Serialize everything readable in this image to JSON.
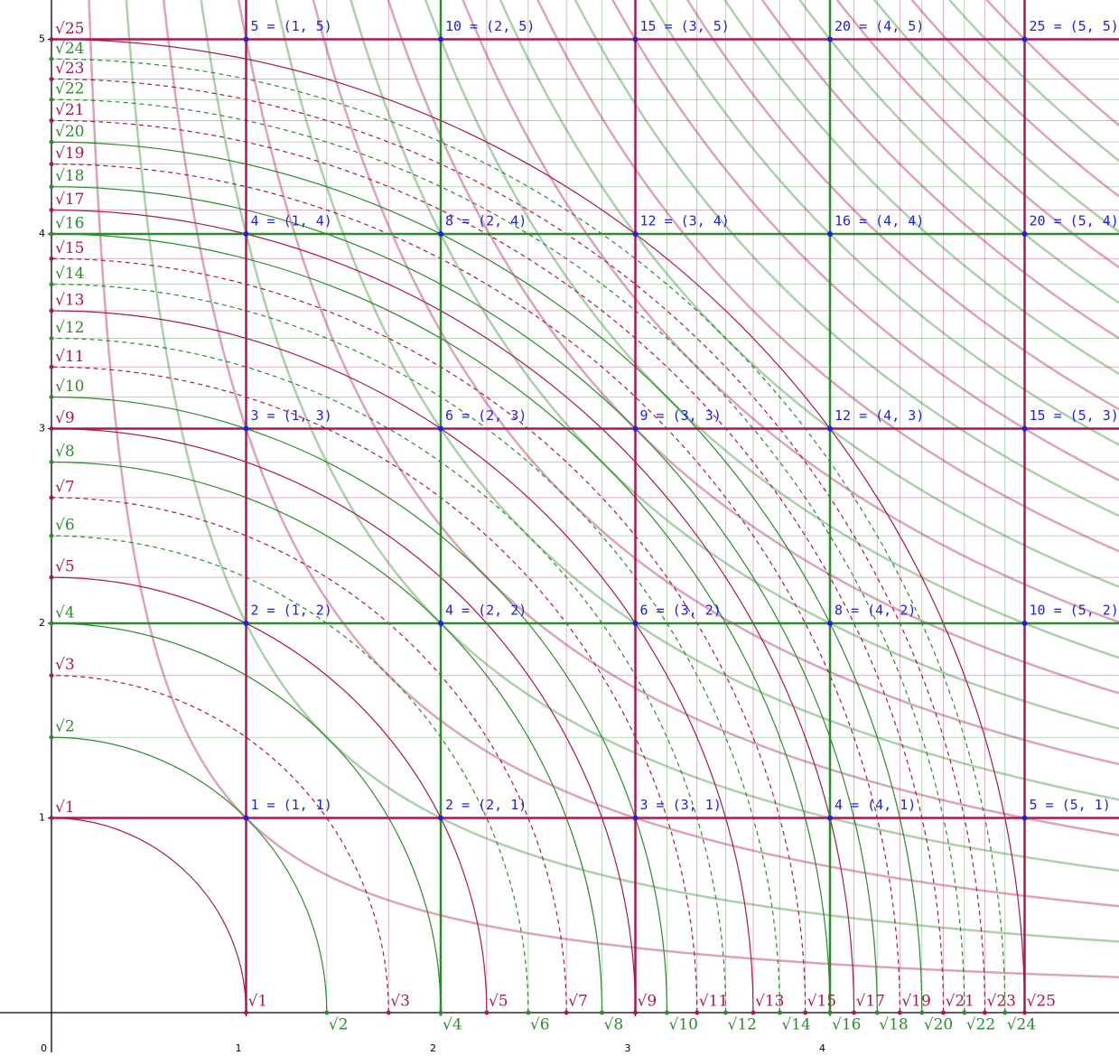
{
  "axes": {
    "xticks": [
      0,
      1,
      2,
      3,
      4
    ],
    "yticks": [
      1,
      2,
      3,
      4,
      5
    ]
  },
  "x_roots": [
    {
      "value": 1,
      "label": "√1"
    },
    {
      "value": 2,
      "label": "√2"
    },
    {
      "value": 3,
      "label": "√3"
    },
    {
      "value": 4,
      "label": "√4"
    },
    {
      "value": 5,
      "label": "√5"
    },
    {
      "value": 6,
      "label": "√6"
    },
    {
      "value": 7,
      "label": "√7"
    },
    {
      "value": 8,
      "label": "√8"
    },
    {
      "value": 9,
      "label": "√9"
    },
    {
      "value": 10,
      "label": "√10"
    },
    {
      "value": 11,
      "label": "√11"
    },
    {
      "value": 12,
      "label": "√12"
    },
    {
      "value": 13,
      "label": "√13"
    },
    {
      "value": 14,
      "label": "√14"
    },
    {
      "value": 15,
      "label": "√15"
    },
    {
      "value": 16,
      "label": "√16"
    },
    {
      "value": 17,
      "label": "√17"
    },
    {
      "value": 18,
      "label": "√18"
    },
    {
      "value": 19,
      "label": "√19"
    },
    {
      "value": 20,
      "label": "√20"
    },
    {
      "value": 21,
      "label": "√21"
    },
    {
      "value": 22,
      "label": "√22"
    },
    {
      "value": 23,
      "label": "√23"
    },
    {
      "value": 24,
      "label": "√24"
    },
    {
      "value": 25,
      "label": "√25"
    }
  ],
  "y_roots": [
    {
      "value": 1,
      "label": "√1"
    },
    {
      "value": 2,
      "label": "√2"
    },
    {
      "value": 3,
      "label": "√3"
    },
    {
      "value": 4,
      "label": "√4"
    },
    {
      "value": 5,
      "label": "√5"
    },
    {
      "value": 6,
      "label": "√6"
    },
    {
      "value": 7,
      "label": "√7"
    },
    {
      "value": 8,
      "label": "√8"
    },
    {
      "value": 9,
      "label": "√9"
    },
    {
      "value": 10,
      "label": "√10"
    },
    {
      "value": 11,
      "label": "√11"
    },
    {
      "value": 12,
      "label": "√12"
    },
    {
      "value": 13,
      "label": "√13"
    },
    {
      "value": 14,
      "label": "√14"
    },
    {
      "value": 15,
      "label": "√15"
    },
    {
      "value": 16,
      "label": "√16"
    },
    {
      "value": 17,
      "label": "√17"
    },
    {
      "value": 18,
      "label": "√18"
    },
    {
      "value": 19,
      "label": "√19"
    },
    {
      "value": 20,
      "label": "√20"
    },
    {
      "value": 21,
      "label": "√21"
    },
    {
      "value": 22,
      "label": "√22"
    },
    {
      "value": 23,
      "label": "√23"
    },
    {
      "value": 24,
      "label": "√24"
    },
    {
      "value": 25,
      "label": "√25"
    }
  ],
  "points": [
    {
      "x": 1,
      "y": 5,
      "label": "5 = (1, 5)"
    },
    {
      "x": 2,
      "y": 5,
      "label": "10 = (2, 5)"
    },
    {
      "x": 3,
      "y": 5,
      "label": "15 = (3, 5)"
    },
    {
      "x": 4,
      "y": 5,
      "label": "20 = (4, 5)"
    },
    {
      "x": 5,
      "y": 5,
      "label": "25 = (5, 5)"
    },
    {
      "x": 1,
      "y": 4,
      "label": "4 = (1, 4)"
    },
    {
      "x": 2,
      "y": 4,
      "label": "8 = (2, 4)"
    },
    {
      "x": 3,
      "y": 4,
      "label": "12 = (3, 4)"
    },
    {
      "x": 4,
      "y": 4,
      "label": "16 = (4, 4)"
    },
    {
      "x": 5,
      "y": 4,
      "label": "20 = (5, 4)"
    },
    {
      "x": 1,
      "y": 3,
      "label": "3 = (1, 3)"
    },
    {
      "x": 2,
      "y": 3,
      "label": "6 = (2, 3)"
    },
    {
      "x": 3,
      "y": 3,
      "label": "9 = (3, 3)"
    },
    {
      "x": 4,
      "y": 3,
      "label": "12 = (4, 3)"
    },
    {
      "x": 5,
      "y": 3,
      "label": "15 = (5, 3)"
    },
    {
      "x": 1,
      "y": 2,
      "label": "2 = (1, 2)"
    },
    {
      "x": 2,
      "y": 2,
      "label": "4 = (2, 2)"
    },
    {
      "x": 3,
      "y": 2,
      "label": "6 = (3, 2)"
    },
    {
      "x": 4,
      "y": 2,
      "label": "8 = (4, 2)"
    },
    {
      "x": 5,
      "y": 2,
      "label": "10 = (5, 2)"
    },
    {
      "x": 1,
      "y": 1,
      "label": "1 = (1, 1)"
    },
    {
      "x": 2,
      "y": 1,
      "label": "2 = (2, 1)"
    },
    {
      "x": 3,
      "y": 1,
      "label": "3 = (3, 1)"
    },
    {
      "x": 4,
      "y": 1,
      "label": "4 = (4, 1)"
    },
    {
      "x": 5,
      "y": 1,
      "label": "5 = (5, 1)"
    }
  ]
}
